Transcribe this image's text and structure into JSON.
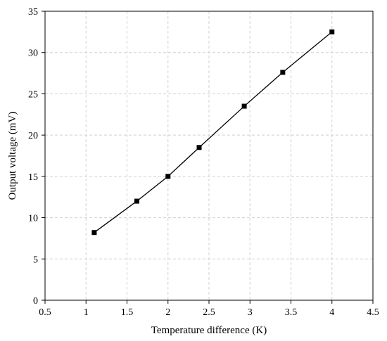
{
  "chart_data": {
    "type": "line",
    "title": "",
    "xlabel": "Temperature difference (K)",
    "ylabel": "Output voltage (mV)",
    "xlim": [
      0.5,
      4.5
    ],
    "ylim": [
      0,
      35
    ],
    "xticks": [
      "0.5",
      "1",
      "1.5",
      "2",
      "2.5",
      "3",
      "3.5",
      "4",
      "4.5"
    ],
    "yticks": [
      "0",
      "5",
      "10",
      "15",
      "20",
      "25",
      "30",
      "35"
    ],
    "grid": true,
    "legend": "none",
    "marker": "square",
    "color": "#000000",
    "series": [
      {
        "x": [
          1.1,
          1.62,
          2.0,
          2.38,
          2.93,
          3.4,
          4.0
        ],
        "y": [
          8.2,
          12.0,
          15.0,
          18.5,
          23.5,
          27.6,
          32.5
        ]
      }
    ]
  }
}
